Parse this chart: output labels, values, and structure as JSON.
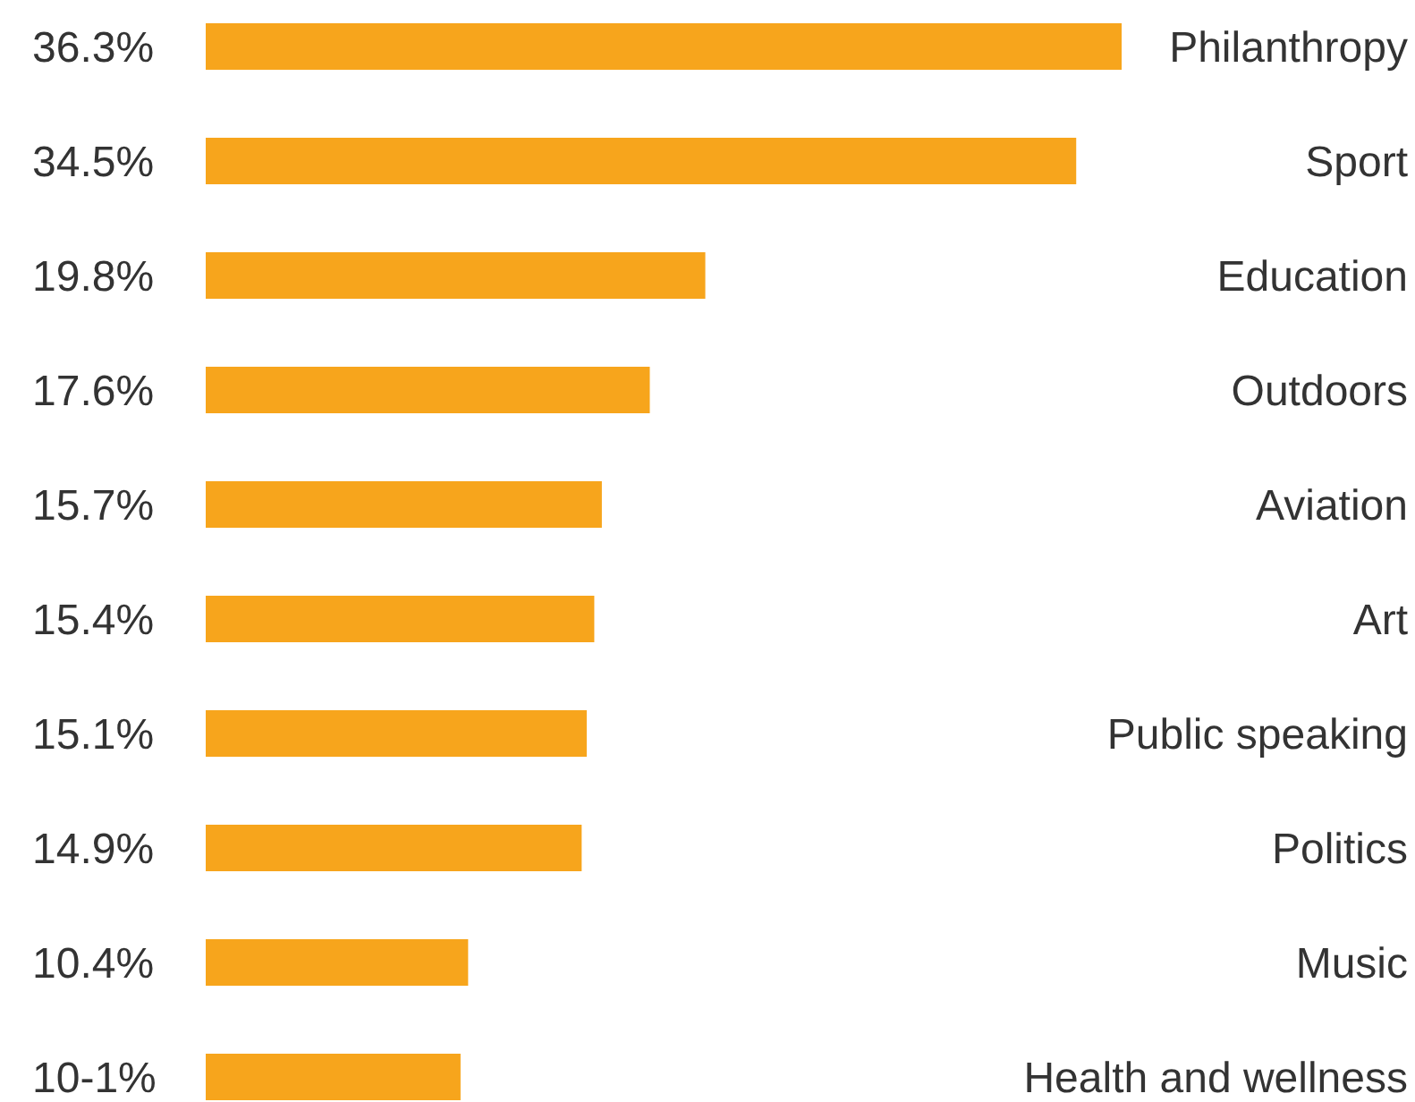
{
  "chart_data": {
    "type": "bar",
    "orientation": "horizontal",
    "categories": [
      "Philanthropy",
      "Sport",
      "Education",
      "Outdoors",
      "Aviation",
      "Art",
      "Public speaking",
      "Politics",
      "Music",
      "Health and wellness"
    ],
    "values": [
      36.3,
      34.5,
      19.8,
      17.6,
      15.7,
      15.4,
      15.1,
      14.9,
      10.4,
      10.1
    ],
    "value_labels": [
      "36.3%",
      "34.5%",
      "19.8%",
      "17.6%",
      "15.7%",
      "15.4%",
      "15.1%",
      "14.9%",
      "10.4%",
      "10-1%"
    ],
    "color": "#f7a51c"
  }
}
